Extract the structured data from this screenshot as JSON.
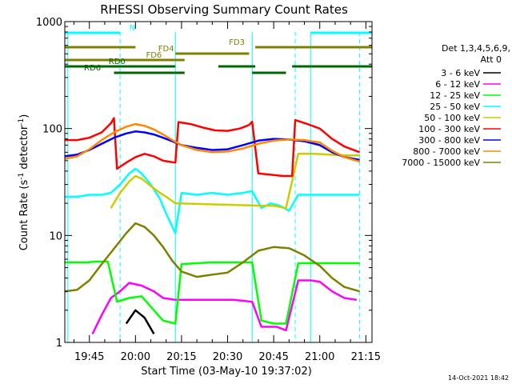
{
  "chart_data": {
    "type": "line",
    "title": "RHESSI Observing Summary Count Rates",
    "xlabel": "Start Time (03-May-10 19:37:02)",
    "ylabel_main": "Count Rate (s",
    "ylabel_sup1": "-1",
    "ylabel_mid": " detector",
    "ylabel_sup2": "-1",
    "ylabel_end": ")",
    "y_scale": "log",
    "ylim": [
      1,
      1000
    ],
    "xlim": [
      "19:37",
      "21:17"
    ],
    "x_ticks": [
      "19:45",
      "20:00",
      "20:15",
      "20:30",
      "20:45",
      "21:00",
      "21:15"
    ],
    "y_ticks": [
      {
        "value": 1,
        "label": "1"
      },
      {
        "value": 10,
        "label": "10"
      },
      {
        "value": 100,
        "label": "100"
      },
      {
        "value": 1000,
        "label": "1000"
      }
    ],
    "legend_title_1": "Det 1,3,4,5,6,9,",
    "legend_title_2": "Att 0",
    "legend_placement": "right",
    "series": [
      {
        "name": "3 - 6 keV",
        "color": "#000000",
        "points": [
          [
            "19:57",
            1.5
          ],
          [
            "20:00",
            2.0
          ],
          [
            "20:03",
            1.7
          ],
          [
            "20:06",
            1.2
          ]
        ]
      },
      {
        "name": "6 - 12 keV",
        "color": "#ff00ff",
        "points": [
          [
            "19:46",
            1.2
          ],
          [
            "19:49",
            1.8
          ],
          [
            "19:52",
            2.6
          ],
          [
            "19:55",
            3.0
          ],
          [
            "19:58",
            3.6
          ],
          [
            "20:02",
            3.4
          ],
          [
            "20:06",
            3.0
          ],
          [
            "20:09",
            2.6
          ],
          [
            "20:13",
            2.5
          ],
          [
            "20:18",
            2.5
          ],
          [
            "20:25",
            2.5
          ],
          [
            "20:32",
            2.5
          ],
          [
            "20:38",
            2.4
          ],
          [
            "20:41",
            1.4
          ],
          [
            "20:46",
            1.4
          ],
          [
            "20:49",
            1.3
          ],
          [
            "20:53",
            3.8
          ],
          [
            "20:57",
            3.8
          ],
          [
            "21:00",
            3.7
          ],
          [
            "21:04",
            3.0
          ],
          [
            "21:08",
            2.6
          ],
          [
            "21:12",
            2.5
          ]
        ]
      },
      {
        "name": "12 - 25 keV",
        "color": "#00ff00",
        "points": [
          [
            "19:37",
            5.6
          ],
          [
            "19:41",
            5.6
          ],
          [
            "19:44",
            5.6
          ],
          [
            "19:47",
            5.7
          ],
          [
            "19:51",
            5.7
          ],
          [
            "19:54",
            2.4
          ],
          [
            "19:58",
            2.6
          ],
          [
            "20:02",
            2.7
          ],
          [
            "20:06",
            2.0
          ],
          [
            "20:09",
            1.6
          ],
          [
            "20:13",
            1.5
          ],
          [
            "20:15",
            5.4
          ],
          [
            "20:20",
            5.5
          ],
          [
            "20:25",
            5.6
          ],
          [
            "20:30",
            5.6
          ],
          [
            "20:35",
            5.6
          ],
          [
            "20:38",
            5.6
          ],
          [
            "20:41",
            1.6
          ],
          [
            "20:45",
            1.5
          ],
          [
            "20:49",
            1.5
          ],
          [
            "20:53",
            5.5
          ],
          [
            "20:58",
            5.5
          ],
          [
            "21:03",
            5.5
          ],
          [
            "21:08",
            5.5
          ],
          [
            "21:13",
            5.5
          ]
        ]
      },
      {
        "name": "25 - 50 keV",
        "color": "#00ffff",
        "points": [
          [
            "19:37",
            23
          ],
          [
            "19:41",
            23
          ],
          [
            "19:45",
            24
          ],
          [
            "19:49",
            24
          ],
          [
            "19:52",
            25
          ],
          [
            "19:55",
            30
          ],
          [
            "19:58",
            38
          ],
          [
            "20:00",
            42
          ],
          [
            "20:02",
            38
          ],
          [
            "20:05",
            30
          ],
          [
            "20:08",
            22
          ],
          [
            "20:10",
            16
          ],
          [
            "20:13",
            10.5
          ],
          [
            "20:15",
            25
          ],
          [
            "20:20",
            24
          ],
          [
            "20:25",
            25
          ],
          [
            "20:30",
            24
          ],
          [
            "20:35",
            25
          ],
          [
            "20:38",
            26
          ],
          [
            "20:41",
            18
          ],
          [
            "20:44",
            20
          ],
          [
            "20:47",
            19
          ],
          [
            "20:50",
            17
          ],
          [
            "20:53",
            24
          ],
          [
            "20:58",
            24
          ],
          [
            "21:03",
            24
          ],
          [
            "21:08",
            24
          ],
          [
            "21:13",
            24
          ]
        ]
      },
      {
        "name": "50 - 100 keV",
        "color": "#cccc00",
        "points": [
          [
            "19:52",
            18
          ],
          [
            "19:55",
            25
          ],
          [
            "19:58",
            32
          ],
          [
            "20:00",
            36
          ],
          [
            "20:02",
            34
          ],
          [
            "20:05",
            29
          ],
          [
            "20:08",
            25
          ],
          [
            "20:11",
            22
          ],
          [
            "20:13",
            20
          ],
          [
            "20:41",
            19
          ],
          [
            "20:45",
            19
          ],
          [
            "20:49",
            18
          ],
          [
            "20:53",
            58
          ],
          [
            "20:58",
            58
          ],
          [
            "21:03",
            57
          ],
          [
            "21:08",
            56
          ],
          [
            "21:13",
            56
          ]
        ]
      },
      {
        "name": "100 - 300 keV",
        "color": "#ff0000",
        "points": [
          [
            "19:37",
            78
          ],
          [
            "19:41",
            78
          ],
          [
            "19:45",
            82
          ],
          [
            "19:49",
            92
          ],
          [
            "19:52",
            112
          ],
          [
            "19:53",
            125
          ],
          [
            "19:54",
            42
          ],
          [
            "19:57",
            48
          ],
          [
            "20:00",
            54
          ],
          [
            "20:03",
            58
          ],
          [
            "20:06",
            55
          ],
          [
            "20:09",
            50
          ],
          [
            "20:13",
            48
          ],
          [
            "20:14",
            115
          ],
          [
            "20:18",
            110
          ],
          [
            "20:22",
            102
          ],
          [
            "20:26",
            96
          ],
          [
            "20:30",
            95
          ],
          [
            "20:34",
            100
          ],
          [
            "20:37",
            108
          ],
          [
            "20:38",
            116
          ],
          [
            "20:40",
            38
          ],
          [
            "20:44",
            37
          ],
          [
            "20:48",
            36
          ],
          [
            "20:51",
            36
          ],
          [
            "20:52",
            120
          ],
          [
            "20:56",
            110
          ],
          [
            "21:00",
            100
          ],
          [
            "21:04",
            80
          ],
          [
            "21:08",
            68
          ],
          [
            "21:13",
            60
          ]
        ]
      },
      {
        "name": "300 - 800 keV",
        "color": "#0000ff",
        "points": [
          [
            "19:37",
            55
          ],
          [
            "19:41",
            57
          ],
          [
            "19:45",
            63
          ],
          [
            "19:49",
            72
          ],
          [
            "19:53",
            82
          ],
          [
            "19:57",
            90
          ],
          [
            "20:00",
            94
          ],
          [
            "20:03",
            92
          ],
          [
            "20:06",
            88
          ],
          [
            "20:09",
            82
          ],
          [
            "20:12",
            76
          ],
          [
            "20:15",
            70
          ],
          [
            "20:20",
            66
          ],
          [
            "20:25",
            63
          ],
          [
            "20:30",
            64
          ],
          [
            "20:35",
            70
          ],
          [
            "20:40",
            77
          ],
          [
            "20:45",
            80
          ],
          [
            "20:50",
            79
          ],
          [
            "20:55",
            76
          ],
          [
            "21:00",
            70
          ],
          [
            "21:04",
            60
          ],
          [
            "21:08",
            54
          ],
          [
            "21:13",
            51
          ]
        ]
      },
      {
        "name": "800 - 7000 keV",
        "color": "#ff8800",
        "points": [
          [
            "19:37",
            52
          ],
          [
            "19:41",
            55
          ],
          [
            "19:45",
            64
          ],
          [
            "19:49",
            78
          ],
          [
            "19:53",
            92
          ],
          [
            "19:57",
            104
          ],
          [
            "20:00",
            110
          ],
          [
            "20:03",
            106
          ],
          [
            "20:06",
            98
          ],
          [
            "20:09",
            88
          ],
          [
            "20:12",
            78
          ],
          [
            "20:15",
            70
          ],
          [
            "20:20",
            63
          ],
          [
            "20:25",
            60
          ],
          [
            "20:30",
            61
          ],
          [
            "20:35",
            65
          ],
          [
            "20:40",
            72
          ],
          [
            "20:45",
            77
          ],
          [
            "20:50",
            79
          ],
          [
            "20:55",
            78
          ],
          [
            "21:00",
            74
          ],
          [
            "21:04",
            62
          ],
          [
            "21:08",
            54
          ],
          [
            "21:13",
            49
          ]
        ]
      },
      {
        "name": "7000 - 15000 keV",
        "color": "#808000",
        "points": [
          [
            "19:37",
            3.0
          ],
          [
            "19:41",
            3.1
          ],
          [
            "19:45",
            3.8
          ],
          [
            "19:49",
            5.4
          ],
          [
            "19:53",
            7.5
          ],
          [
            "19:57",
            10.5
          ],
          [
            "20:00",
            13.0
          ],
          [
            "20:03",
            12.0
          ],
          [
            "20:06",
            10.0
          ],
          [
            "20:09",
            7.8
          ],
          [
            "20:12",
            5.8
          ],
          [
            "20:15",
            4.6
          ],
          [
            "20:20",
            4.1
          ],
          [
            "20:25",
            4.3
          ],
          [
            "20:30",
            4.5
          ],
          [
            "20:35",
            5.6
          ],
          [
            "20:40",
            7.2
          ],
          [
            "20:45",
            7.8
          ],
          [
            "20:50",
            7.6
          ],
          [
            "20:55",
            6.5
          ],
          [
            "21:00",
            5.2
          ],
          [
            "21:04",
            4.0
          ],
          [
            "21:08",
            3.3
          ],
          [
            "21:13",
            3.0
          ]
        ]
      }
    ],
    "flag_bars": [
      {
        "label": "N",
        "color": "#00ffff",
        "label_at": "19:59",
        "segments": [
          [
            "19:37",
            "19:55"
          ],
          [
            "20:57",
            "21:17"
          ]
        ]
      },
      {
        "label": "FD3",
        "color": "#808000",
        "label_at": "20:33",
        "segments": [
          [
            "19:37",
            "20:00"
          ],
          [
            "20:39",
            "21:17"
          ]
        ]
      },
      {
        "label": "FD4",
        "color": "#808000",
        "label_at": "20:10",
        "segments": [
          [
            "20:13",
            "20:37"
          ]
        ]
      },
      {
        "label": "FD6",
        "color": "#808000",
        "label_at": "20:06",
        "segments": [
          [
            "19:37",
            "20:16"
          ]
        ]
      },
      {
        "label": "RD0",
        "color": "#006600",
        "label_at": "19:54",
        "segments": [
          [
            "19:37",
            "20:13"
          ],
          [
            "20:27",
            "20:39"
          ],
          [
            "20:51",
            "21:17"
          ]
        ]
      },
      {
        "label": "RD6",
        "color": "#006600",
        "label_at": "19:46",
        "segments": [
          [
            "19:53",
            "20:16"
          ],
          [
            "20:38",
            "20:49"
          ]
        ]
      }
    ],
    "vertical_markers": [
      {
        "time": "19:38",
        "style": "solid"
      },
      {
        "time": "19:55",
        "style": "dashed"
      },
      {
        "time": "20:13",
        "style": "solid"
      },
      {
        "time": "20:38",
        "style": "solid"
      },
      {
        "time": "20:52",
        "style": "dashed"
      },
      {
        "time": "20:57",
        "style": "solid"
      },
      {
        "time": "21:13",
        "style": "dashed"
      }
    ]
  },
  "footer_date": "14-Oct-2021 18:42"
}
